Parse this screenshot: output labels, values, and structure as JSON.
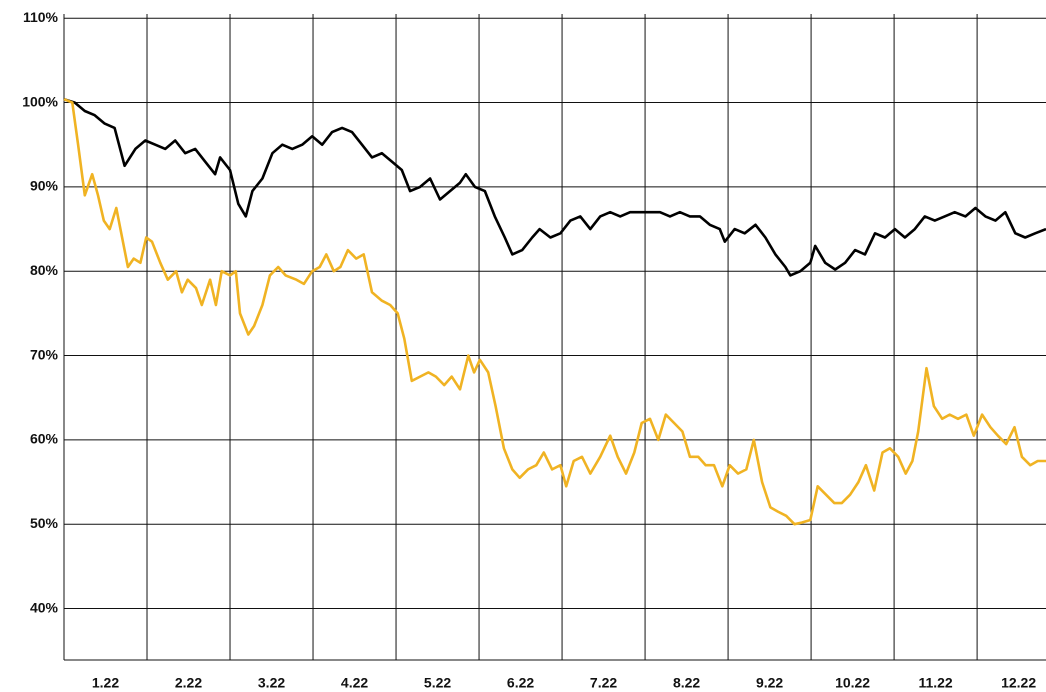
{
  "chart_data": {
    "type": "line",
    "categories": [
      "1.22",
      "2.22",
      "3.22",
      "4.22",
      "5.22",
      "6.22",
      "7.22",
      "8.22",
      "9.22",
      "10.22",
      "11.22",
      "12.22"
    ],
    "xlim": [
      0,
      11.83
    ],
    "xticks": [
      1,
      2,
      3,
      4,
      5,
      6,
      7,
      8,
      9,
      10,
      11
    ],
    "ylim": [
      33.9,
      110.5
    ],
    "yticks": [
      {
        "value": 40,
        "label": "40%"
      },
      {
        "value": 50,
        "label": "50%"
      },
      {
        "value": 60,
        "label": "60%"
      },
      {
        "value": 70,
        "label": "70%"
      },
      {
        "value": 80,
        "label": "80%"
      },
      {
        "value": 90,
        "label": "90%"
      },
      {
        "value": 100,
        "label": "100%"
      },
      {
        "value": 110,
        "label": "110%"
      }
    ],
    "grid": true,
    "series": [
      {
        "color": "#000000",
        "x": [
          0,
          0.13,
          0.25,
          0.37,
          0.49,
          0.61,
          0.73,
          0.86,
          0.98,
          1.1,
          1.22,
          1.34,
          1.46,
          1.58,
          1.7,
          1.82,
          1.88,
          2,
          2.1,
          2.19,
          2.27,
          2.39,
          2.51,
          2.63,
          2.75,
          2.87,
          2.99,
          3.11,
          3.23,
          3.35,
          3.47,
          3.59,
          3.71,
          3.83,
          3.95,
          4.07,
          4.17,
          4.29,
          4.41,
          4.53,
          4.65,
          4.77,
          4.84,
          4.95,
          5.07,
          5.19,
          5.31,
          5.4,
          5.52,
          5.64,
          5.73,
          5.86,
          5.98,
          6.1,
          6.22,
          6.34,
          6.46,
          6.58,
          6.7,
          6.82,
          6.94,
          7.06,
          7.18,
          7.3,
          7.42,
          7.54,
          7.66,
          7.78,
          7.9,
          7.96,
          8.08,
          8.2,
          8.33,
          8.45,
          8.57,
          8.69,
          8.75,
          8.87,
          8.99,
          9.05,
          9.17,
          9.29,
          9.41,
          9.53,
          9.65,
          9.77,
          9.89,
          10.01,
          10.13,
          10.25,
          10.37,
          10.49,
          10.61,
          10.73,
          10.86,
          10.98,
          11.1,
          11.22,
          11.34,
          11.46,
          11.58,
          11.7,
          11.83
        ],
        "values": [
          100.4,
          100,
          99,
          98.5,
          97.5,
          97,
          92.5,
          94.5,
          95.5,
          95,
          94.5,
          95.5,
          94,
          94.5,
          93,
          91.5,
          93.5,
          92,
          88,
          86.5,
          89.5,
          91,
          94,
          95,
          94.5,
          95,
          96,
          95,
          96.5,
          97,
          96.5,
          95,
          93.5,
          94,
          93,
          92,
          89.5,
          90,
          91,
          88.5,
          89.5,
          90.5,
          91.5,
          90,
          89.5,
          86.5,
          84,
          82,
          82.5,
          84,
          85,
          84,
          84.5,
          86,
          86.5,
          85,
          86.5,
          87,
          86.5,
          87,
          87,
          87,
          87,
          86.5,
          87,
          86.5,
          86.5,
          85.5,
          85,
          83.5,
          85,
          84.5,
          85.5,
          84,
          82,
          80.5,
          79.5,
          80,
          81,
          83,
          81,
          80.2,
          81,
          82.5,
          82,
          84.5,
          84,
          85,
          84,
          85,
          86.5,
          86,
          86.5,
          87,
          86.5,
          87.5,
          86.5,
          86,
          87,
          84.5,
          84,
          84.5,
          85
        ]
      },
      {
        "color": "#f0b323",
        "x": [
          0,
          0.1,
          0.17,
          0.25,
          0.34,
          0.41,
          0.48,
          0.55,
          0.63,
          0.7,
          0.77,
          0.84,
          0.92,
          0.99,
          1.06,
          1.16,
          1.25,
          1.35,
          1.42,
          1.49,
          1.59,
          1.66,
          1.76,
          1.83,
          1.9,
          2,
          2.07,
          2.12,
          2.22,
          2.29,
          2.39,
          2.48,
          2.58,
          2.67,
          2.8,
          2.89,
          2.99,
          3.08,
          3.16,
          3.25,
          3.33,
          3.42,
          3.52,
          3.61,
          3.71,
          3.83,
          3.93,
          4.02,
          4.1,
          4.19,
          4.29,
          4.39,
          4.48,
          4.58,
          4.67,
          4.77,
          4.87,
          4.94,
          5.01,
          5.11,
          5.2,
          5.3,
          5.4,
          5.49,
          5.59,
          5.69,
          5.78,
          5.88,
          5.98,
          6.05,
          6.14,
          6.24,
          6.34,
          6.46,
          6.58,
          6.67,
          6.77,
          6.87,
          6.96,
          7.06,
          7.16,
          7.25,
          7.35,
          7.45,
          7.54,
          7.64,
          7.73,
          7.83,
          7.93,
          8.02,
          8.12,
          8.22,
          8.31,
          8.41,
          8.51,
          8.6,
          8.7,
          8.8,
          8.89,
          8.99,
          9.08,
          9.18,
          9.28,
          9.37,
          9.47,
          9.57,
          9.66,
          9.76,
          9.86,
          9.95,
          10.05,
          10.14,
          10.22,
          10.29,
          10.39,
          10.48,
          10.58,
          10.67,
          10.77,
          10.87,
          10.96,
          11.06,
          11.16,
          11.25,
          11.35,
          11.45,
          11.54,
          11.64,
          11.73,
          11.83
        ],
        "values": [
          100.4,
          100,
          95,
          89,
          91.5,
          89,
          86,
          85,
          87.5,
          84,
          80.5,
          81.5,
          81,
          84,
          83.5,
          81,
          79,
          80,
          77.5,
          79,
          78,
          76,
          79,
          76,
          80,
          79.5,
          80,
          75,
          72.5,
          73.5,
          76,
          79.5,
          80.5,
          79.5,
          79,
          78.5,
          80,
          80.5,
          82,
          80,
          80.5,
          82.5,
          81.5,
          82,
          77.5,
          76.5,
          76,
          75,
          72,
          67,
          67.5,
          68,
          67.5,
          66.5,
          67.5,
          66,
          70,
          68,
          69.5,
          68,
          64,
          59,
          56.5,
          55.5,
          56.5,
          57,
          58.5,
          56.5,
          57,
          54.5,
          57.5,
          58,
          56,
          58,
          60.5,
          58,
          56,
          58.5,
          62,
          62.5,
          60,
          63,
          62,
          61,
          58,
          58,
          57,
          57,
          54.5,
          57,
          56,
          56.5,
          60,
          55,
          52,
          51.5,
          51,
          50,
          50.2,
          50.5,
          54.5,
          53.5,
          52.5,
          52.5,
          53.5,
          55,
          57,
          54,
          58.5,
          59,
          58,
          56,
          57.5,
          61,
          68.5,
          64,
          62.5,
          63,
          62.5,
          63,
          60.5,
          63,
          61.5,
          60.5,
          59.5,
          61.5,
          58,
          57,
          57.5,
          57.5
        ]
      }
    ]
  }
}
